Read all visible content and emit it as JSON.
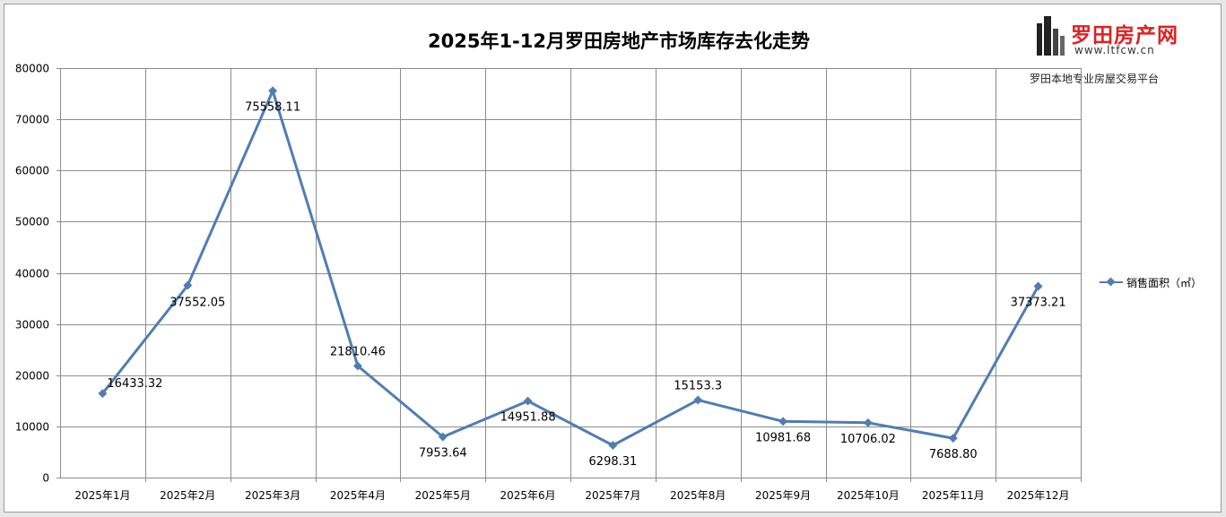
{
  "header": {
    "title": "2025年1-12月罗田房地产市场库存去化走势"
  },
  "logo": {
    "text": "罗田房产网",
    "url": "www.ltfcw.cn",
    "slogan": "罗田本地专业房屋交易平台",
    "icon": "building-icon"
  },
  "colors": {
    "series": "#4f7db3",
    "grid": "#8c8c8c",
    "logo": "#e02020"
  },
  "chart_data": {
    "type": "line",
    "title": "2025年1-12月罗田房地产市场库存去化走势",
    "categories": [
      "2025年1月",
      "2025年2月",
      "2025年3月",
      "2025年4月",
      "2025年5月",
      "2025年6月",
      "2025年7月",
      "2025年8月",
      "2025年9月",
      "2025年10月",
      "2025年11月",
      "2025年12月"
    ],
    "series": [
      {
        "name": "销售面积（㎡）",
        "values": [
          16433.32,
          37552.05,
          75558.11,
          21810.46,
          7953.64,
          14951.88,
          6298.31,
          15153.3,
          10981.68,
          10706.02,
          7688.8,
          37373.21
        ],
        "labels": [
          "16433.32",
          "37552.05",
          "75558.11",
          "21810.46",
          "7953.64",
          "14951.88",
          "6298.31",
          "15153.3",
          "10981.68",
          "10706.02",
          "7688.80",
          "37373.21"
        ]
      }
    ],
    "y_ticks": [
      "0",
      "10000",
      "20000",
      "30000",
      "40000",
      "50000",
      "60000",
      "70000",
      "80000"
    ],
    "ylim": [
      0,
      80000
    ],
    "xlabel": "",
    "ylabel": "",
    "grid": true,
    "legend_position": "right"
  }
}
